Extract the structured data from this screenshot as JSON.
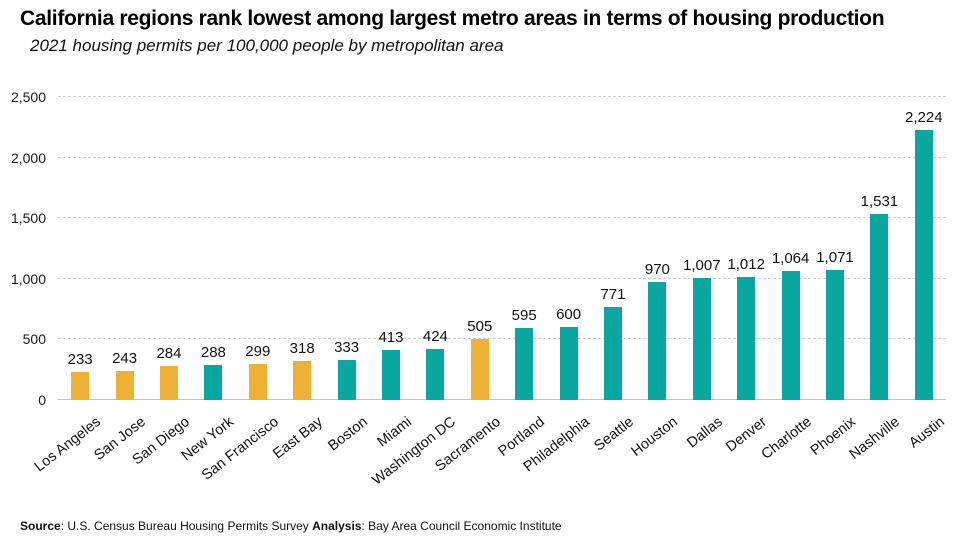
{
  "page": {
    "title": "California regions rank lowest among largest metro areas in terms of housing production",
    "subtitle": "2021 housing permits per 100,000 people by metropolitan area",
    "footer": {
      "source_label": "Source",
      "source_text": ": U.S. Census Bureau Housing Permits Survey ",
      "analysis_label": "Analysis",
      "analysis_text": ": Bay Area Council Economic Institute"
    }
  },
  "colors": {
    "california_bar": "#EDB136",
    "other_bar": "#09A7A0",
    "gridline": "#CFCFCF",
    "axis_line": "#C4C4C4",
    "text": "#111111"
  },
  "chart_data": {
    "type": "bar",
    "title": "California regions rank lowest among largest metro areas in terms of housing production",
    "subtitle": "2021 housing permits per 100,000 people by metropolitan area",
    "xlabel": "",
    "ylabel": "2021 housing permits per 100,000 people",
    "ylim": [
      0,
      2500
    ],
    "ytick_step": 500,
    "ytick_labels": [
      "0",
      "500",
      "1,000",
      "1,500",
      "2,000",
      "2,500"
    ],
    "grid": "horizontal-dashed",
    "legend": "none",
    "value_labels": "above-bars",
    "categories": [
      "Los Angeles",
      "San Jose",
      "San Diego",
      "New York",
      "San Francisco",
      "East Bay",
      "Boston",
      "Miami",
      "Washington DC",
      "Sacramento",
      "Portland",
      "Philadelphia",
      "Seattle",
      "Houston",
      "Dallas",
      "Denver",
      "Charlotte",
      "Phoenix",
      "Nashville",
      "Austin"
    ],
    "values": [
      233,
      243,
      284,
      288,
      299,
      318,
      333,
      413,
      424,
      505,
      595,
      600,
      771,
      970,
      1007,
      1012,
      1064,
      1071,
      1531,
      2224
    ],
    "california_indices": [
      0,
      1,
      2,
      4,
      5,
      9
    ],
    "highlight_meaning": "California regions shown in gold, other metros in teal"
  }
}
